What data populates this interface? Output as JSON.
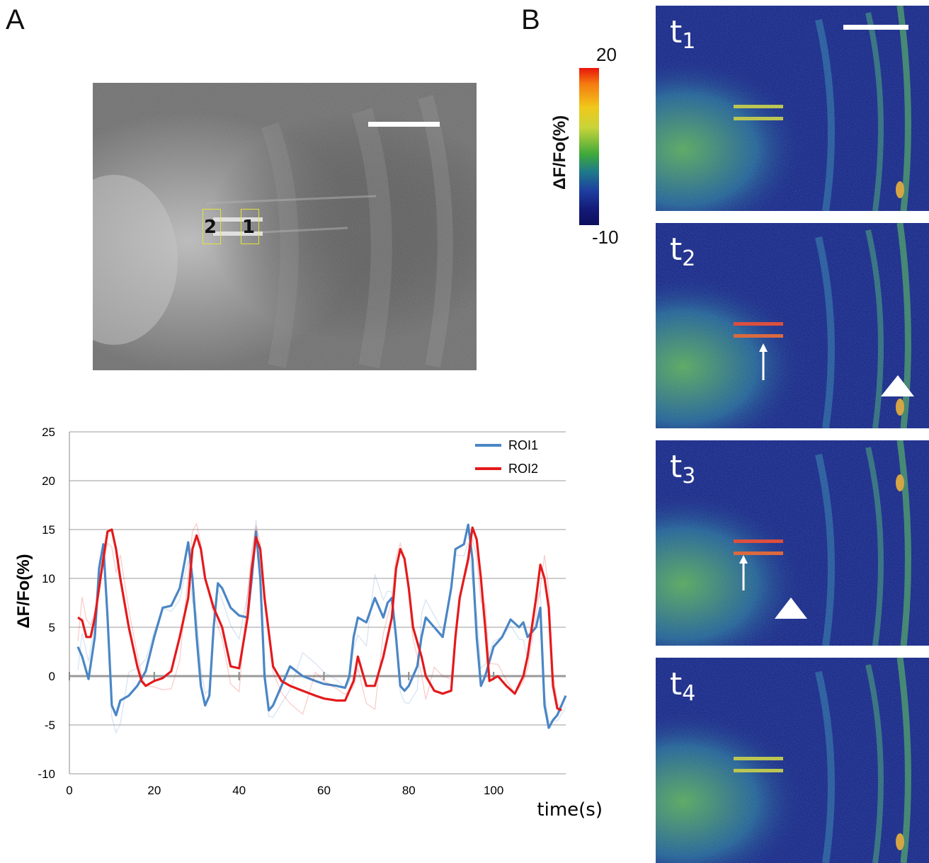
{
  "panels": {
    "a": "A",
    "b": "B"
  },
  "roi_labels": [
    "2",
    "1"
  ],
  "colorbar": {
    "max": "20",
    "min": "-10",
    "label": "ΔF/Fo(%)"
  },
  "frames": [
    {
      "t": "t",
      "sub": "1",
      "arrow": false,
      "triangle": null
    },
    {
      "t": "t",
      "sub": "2",
      "arrow": true,
      "triangle": "right"
    },
    {
      "t": "t",
      "sub": "3",
      "arrow": true,
      "triangle": "mid"
    },
    {
      "t": "t",
      "sub": "4",
      "arrow": false,
      "triangle": null
    }
  ],
  "chart_data": {
    "type": "line",
    "ylabel": "ΔF/Fo(%)",
    "xlabel": "time(s)",
    "ylim": [
      -10,
      25
    ],
    "xlim": [
      0,
      117
    ],
    "yticks": [
      -10,
      -5,
      0,
      5,
      10,
      15,
      20,
      25
    ],
    "xticks": [
      0,
      20,
      40,
      60,
      80,
      100
    ],
    "grid": true,
    "legend_position": "top-right",
    "series": [
      {
        "name": "ROI1",
        "color": "#4a86c5",
        "points": [
          [
            2,
            3
          ],
          [
            3,
            2
          ],
          [
            4.5,
            -0.3
          ],
          [
            6,
            4
          ],
          [
            7,
            11
          ],
          [
            8,
            13.5
          ],
          [
            9,
            6
          ],
          [
            10,
            -3
          ],
          [
            11,
            -4
          ],
          [
            12,
            -2.5
          ],
          [
            14,
            -2
          ],
          [
            16,
            -1
          ],
          [
            18,
            0.5
          ],
          [
            20,
            4
          ],
          [
            22,
            7
          ],
          [
            24,
            7.2
          ],
          [
            26,
            9
          ],
          [
            28,
            13.7
          ],
          [
            29,
            10
          ],
          [
            30,
            4
          ],
          [
            31,
            -1
          ],
          [
            32,
            -3
          ],
          [
            33,
            -2
          ],
          [
            34,
            5
          ],
          [
            35,
            9.5
          ],
          [
            36,
            9
          ],
          [
            38,
            7
          ],
          [
            40,
            6.2
          ],
          [
            42,
            6
          ],
          [
            43,
            10
          ],
          [
            44,
            14.8
          ],
          [
            45,
            10
          ],
          [
            46,
            0
          ],
          [
            47,
            -3.5
          ],
          [
            48,
            -3
          ],
          [
            50,
            -1
          ],
          [
            52,
            1
          ],
          [
            55,
            0
          ],
          [
            58,
            -0.5
          ],
          [
            60,
            -0.8
          ],
          [
            63,
            -1
          ],
          [
            65,
            -1.2
          ],
          [
            66,
            0
          ],
          [
            67,
            4
          ],
          [
            68,
            6
          ],
          [
            70,
            5.5
          ],
          [
            72,
            8
          ],
          [
            74,
            6
          ],
          [
            75,
            7.5
          ],
          [
            76,
            8
          ],
          [
            77,
            4
          ],
          [
            78,
            -1
          ],
          [
            79,
            -1.5
          ],
          [
            80,
            -1
          ],
          [
            82,
            1
          ],
          [
            83,
            4
          ],
          [
            84,
            6
          ],
          [
            86,
            5
          ],
          [
            88,
            4
          ],
          [
            90,
            9
          ],
          [
            91,
            13
          ],
          [
            93,
            13.5
          ],
          [
            94,
            15.5
          ],
          [
            95,
            12
          ],
          [
            96,
            4
          ],
          [
            97,
            -1
          ],
          [
            98,
            0
          ],
          [
            100,
            3
          ],
          [
            102,
            4
          ],
          [
            104,
            5.8
          ],
          [
            106,
            5
          ],
          [
            107,
            5.5
          ],
          [
            108,
            4
          ],
          [
            110,
            5
          ],
          [
            111,
            7
          ],
          [
            112,
            -3
          ],
          [
            113,
            -5.3
          ],
          [
            114,
            -4.5
          ],
          [
            115,
            -4
          ],
          [
            117,
            -2
          ]
        ]
      },
      {
        "name": "ROI2",
        "color": "#e31a1c",
        "points": [
          [
            2,
            6
          ],
          [
            3,
            5.7
          ],
          [
            4,
            4
          ],
          [
            5,
            4
          ],
          [
            6,
            6
          ],
          [
            7,
            9
          ],
          [
            8,
            12
          ],
          [
            9,
            14.8
          ],
          [
            10,
            15
          ],
          [
            11,
            13
          ],
          [
            12,
            10
          ],
          [
            14,
            5
          ],
          [
            16,
            1
          ],
          [
            17,
            -0.5
          ],
          [
            18,
            -1
          ],
          [
            20,
            -0.5
          ],
          [
            22,
            -0.2
          ],
          [
            24,
            0.5
          ],
          [
            26,
            4
          ],
          [
            28,
            8
          ],
          [
            29,
            13
          ],
          [
            30,
            14.4
          ],
          [
            31,
            13
          ],
          [
            32,
            10
          ],
          [
            34,
            7
          ],
          [
            36,
            5
          ],
          [
            38,
            1
          ],
          [
            40,
            0.8
          ],
          [
            42,
            6
          ],
          [
            43,
            11
          ],
          [
            44,
            14.2
          ],
          [
            45,
            13
          ],
          [
            46,
            8
          ],
          [
            48,
            1
          ],
          [
            50,
            -0.5
          ],
          [
            52,
            -1
          ],
          [
            55,
            -1.5
          ],
          [
            58,
            -2
          ],
          [
            60,
            -2.3
          ],
          [
            63,
            -2.5
          ],
          [
            65,
            -2.5
          ],
          [
            66,
            -1.5
          ],
          [
            67,
            -0.5
          ],
          [
            68,
            2
          ],
          [
            70,
            -1
          ],
          [
            72,
            -1
          ],
          [
            74,
            2
          ],
          [
            76,
            6
          ],
          [
            77,
            11
          ],
          [
            78,
            13
          ],
          [
            79,
            12
          ],
          [
            80,
            9
          ],
          [
            81,
            5
          ],
          [
            83,
            2
          ],
          [
            84,
            0
          ],
          [
            86,
            -1.5
          ],
          [
            88,
            -1.8
          ],
          [
            90,
            -1.5
          ],
          [
            91,
            4
          ],
          [
            92,
            8
          ],
          [
            94,
            12
          ],
          [
            95,
            15.2
          ],
          [
            96,
            14
          ],
          [
            97,
            10
          ],
          [
            98,
            5
          ],
          [
            99,
            -0.5
          ],
          [
            101,
            0
          ],
          [
            103,
            -1
          ],
          [
            105,
            -1.8
          ],
          [
            107,
            0
          ],
          [
            108,
            2
          ],
          [
            110,
            8
          ],
          [
            111,
            11.4
          ],
          [
            112,
            10
          ],
          [
            113,
            7
          ],
          [
            114,
            -1
          ],
          [
            115,
            -3.3
          ],
          [
            116,
            -3.5
          ]
        ]
      }
    ]
  }
}
